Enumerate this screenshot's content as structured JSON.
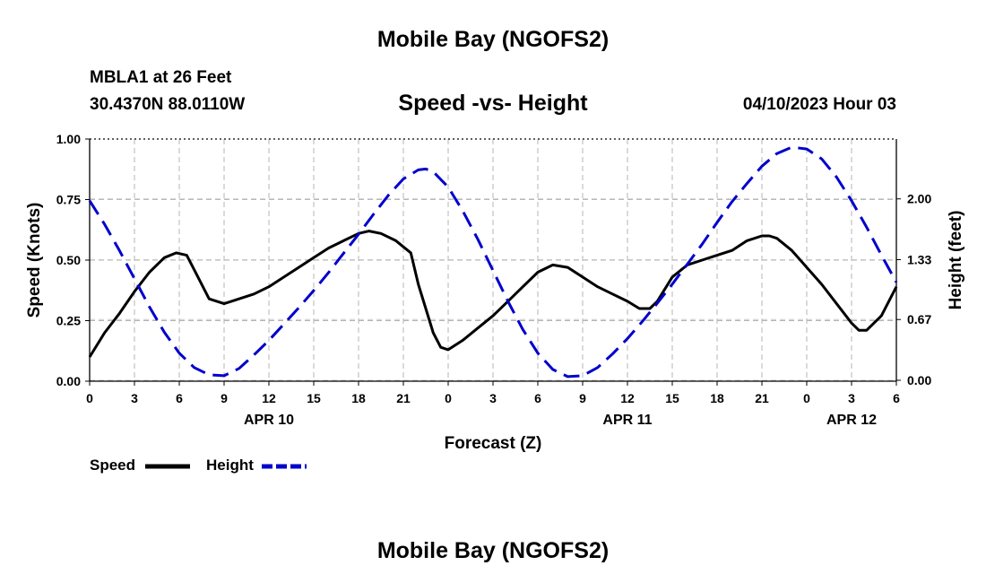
{
  "header": {
    "title": "Mobile Bay (NGOFS2)",
    "station": "MBLA1 at 26 Feet",
    "coords": "30.4370N  88.0110W",
    "chart_title": "Speed -vs- Height",
    "run_time": "04/10/2023 Hour 03"
  },
  "footer": {
    "title": "Mobile Bay (NGOFS2)"
  },
  "legend": {
    "speed_label": "Speed",
    "height_label": "Height",
    "speed_color": "#000000",
    "height_color": "#0000cc"
  },
  "chart_data": {
    "type": "line",
    "title": "Speed -vs- Height",
    "xlabel": "Forecast (Z)",
    "ylabel": "Speed (Knots)",
    "y2label": "Height (feet)",
    "x_unit": "hours since APR 10 00Z",
    "xlim": [
      0,
      54
    ],
    "ylim": [
      0,
      1
    ],
    "y2lim": [
      -0.01,
      2.66
    ],
    "x_ticks": [
      0,
      3,
      6,
      9,
      12,
      15,
      18,
      21,
      24,
      27,
      30,
      33,
      36,
      39,
      42,
      45,
      48,
      51,
      54
    ],
    "x_tick_labels": [
      "0",
      "3",
      "6",
      "9",
      "12",
      "15",
      "18",
      "21",
      "0",
      "3",
      "6",
      "9",
      "12",
      "15",
      "18",
      "21",
      "0",
      "3",
      "6"
    ],
    "date_labels": [
      {
        "x": 12,
        "label": "APR 10"
      },
      {
        "x": 36,
        "label": "APR 11"
      },
      {
        "x": 60,
        "label": "APR 12"
      }
    ],
    "y_ticks": [
      0,
      0.25,
      0.5,
      0.75,
      1
    ],
    "y_tick_labels": [
      "0.00",
      "0.25",
      "0.50",
      "0.75",
      "1.00"
    ],
    "y2_ticks": [
      0,
      0.67,
      1.33,
      2.0
    ],
    "y2_tick_labels": [
      "0.00",
      "0.67",
      "1.33",
      "2.00"
    ],
    "grid": true,
    "series": [
      {
        "name": "Speed",
        "axis": "left",
        "color": "#000000",
        "style": "solid",
        "x": [
          0,
          1,
          2,
          3,
          4,
          5,
          5.8,
          6.5,
          7,
          8,
          9,
          10,
          11,
          12,
          13,
          14,
          15,
          16,
          17,
          18,
          18.7,
          19.5,
          20.5,
          21.5,
          22,
          22.5,
          23,
          23.5,
          24,
          25,
          26,
          27,
          28,
          29,
          30,
          31,
          32,
          33,
          34,
          35,
          36,
          36.8,
          37.5,
          38,
          39,
          40,
          41,
          42,
          43,
          44,
          45,
          45.5,
          46,
          47,
          48,
          49,
          50,
          51,
          51.5,
          52,
          53,
          54
        ],
        "values": [
          0.1,
          0.2,
          0.28,
          0.37,
          0.45,
          0.51,
          0.53,
          0.52,
          0.46,
          0.34,
          0.32,
          0.34,
          0.36,
          0.39,
          0.43,
          0.47,
          0.51,
          0.55,
          0.58,
          0.61,
          0.62,
          0.61,
          0.58,
          0.53,
          0.4,
          0.3,
          0.2,
          0.14,
          0.13,
          0.17,
          0.22,
          0.27,
          0.33,
          0.39,
          0.45,
          0.48,
          0.47,
          0.43,
          0.39,
          0.36,
          0.33,
          0.3,
          0.3,
          0.33,
          0.43,
          0.48,
          0.5,
          0.52,
          0.54,
          0.58,
          0.6,
          0.6,
          0.59,
          0.54,
          0.47,
          0.4,
          0.32,
          0.24,
          0.21,
          0.21,
          0.27,
          0.39
        ]
      },
      {
        "name": "Height",
        "axis": "right",
        "color": "#0000cc",
        "style": "dashed",
        "x": [
          0,
          1,
          2,
          3,
          4,
          5,
          6,
          7,
          8,
          9,
          10,
          11,
          12,
          13,
          14,
          15,
          16,
          17,
          18,
          19,
          20,
          21,
          22,
          22.5,
          23,
          24,
          25,
          26,
          27,
          28,
          29,
          30,
          31,
          32,
          33,
          34,
          35,
          36,
          37,
          38,
          39,
          40,
          41,
          42,
          43,
          44,
          45,
          46,
          47,
          48,
          49,
          50,
          51,
          52,
          53,
          54
        ],
        "values": [
          1.98,
          1.72,
          1.43,
          1.12,
          0.81,
          0.53,
          0.3,
          0.14,
          0.06,
          0.05,
          0.13,
          0.28,
          0.44,
          0.62,
          0.8,
          0.99,
          1.19,
          1.4,
          1.61,
          1.83,
          2.04,
          2.22,
          2.32,
          2.33,
          2.3,
          2.13,
          1.86,
          1.55,
          1.21,
          0.87,
          0.56,
          0.3,
          0.12,
          0.04,
          0.05,
          0.14,
          0.29,
          0.46,
          0.65,
          0.85,
          1.06,
          1.28,
          1.5,
          1.74,
          1.97,
          2.17,
          2.36,
          2.5,
          2.57,
          2.55,
          2.44,
          2.24,
          1.98,
          1.69,
          1.38,
          1.08
        ]
      }
    ]
  }
}
